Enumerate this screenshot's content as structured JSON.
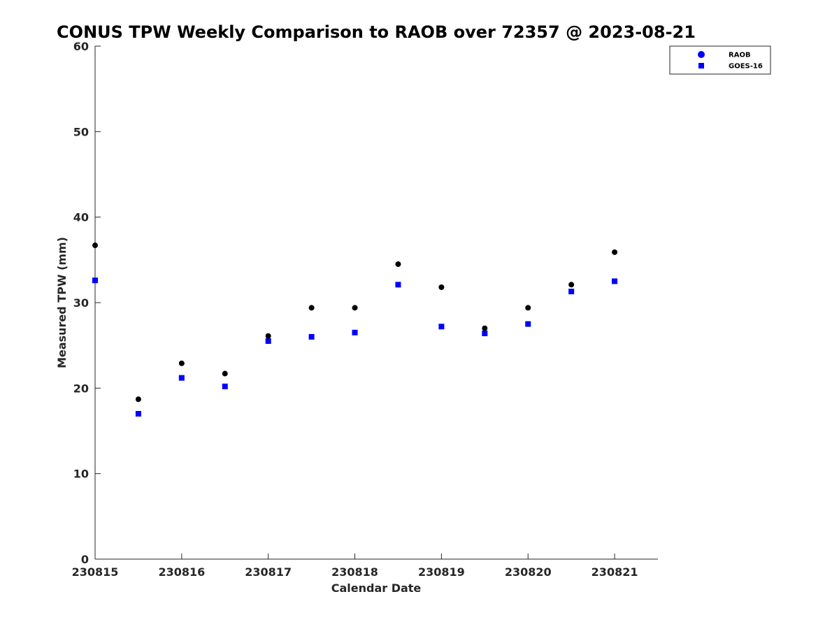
{
  "chart_data": {
    "type": "scatter",
    "title": "CONUS TPW Weekly Comparison to RAOB over 72357 @ 2023-08-21",
    "xlabel": "Calendar Date",
    "ylabel": "Measured TPW (mm)",
    "xlim": [
      0,
      6.5
    ],
    "ylim": [
      0,
      60
    ],
    "x_ticks": [
      0,
      1,
      2,
      3,
      4,
      5,
      6
    ],
    "x_tick_labels": [
      "230815",
      "230816",
      "230817",
      "230818",
      "230819",
      "230820",
      "230821"
    ],
    "y_ticks": [
      0,
      10,
      20,
      30,
      40,
      50,
      60
    ],
    "y_tick_labels": [
      "0",
      "10",
      "20",
      "30",
      "40",
      "50",
      "60"
    ],
    "grid": false,
    "legend_position": "top-right",
    "series": [
      {
        "name": "RAOB",
        "marker": "circle",
        "color": "#000000",
        "x": [
          0,
          0.5,
          1,
          1.5,
          2,
          2.5,
          3,
          3.5,
          4,
          4.5,
          5,
          5.5,
          6
        ],
        "values": [
          36.7,
          18.7,
          22.9,
          21.7,
          26.1,
          29.4,
          29.4,
          34.5,
          31.8,
          27.0,
          29.4,
          32.1,
          35.9
        ]
      },
      {
        "name": "GOES-16",
        "marker": "square",
        "color": "#0000ff",
        "x": [
          0,
          0.5,
          1,
          1.5,
          2,
          2.5,
          3,
          3.5,
          4,
          4.5,
          5,
          5.5,
          6
        ],
        "values": [
          32.6,
          17.0,
          21.2,
          20.2,
          25.5,
          26.0,
          26.5,
          32.1,
          27.2,
          26.4,
          27.5,
          31.3,
          32.5
        ]
      }
    ]
  }
}
